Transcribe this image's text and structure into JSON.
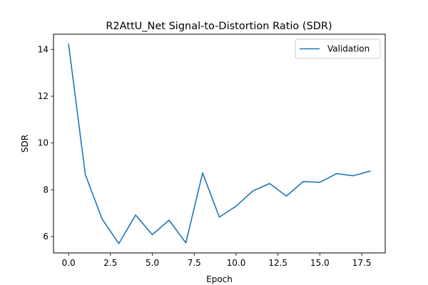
{
  "chart_data": {
    "type": "line",
    "title": "R2AttU_Net Signal-to-Distortion Ratio (SDR)",
    "xlabel": "Epoch",
    "ylabel": "SDR",
    "xlim": [
      -0.9,
      18.9
    ],
    "ylim": [
      5.3,
      14.65
    ],
    "xticks": [
      0.0,
      2.5,
      5.0,
      7.5,
      10.0,
      12.5,
      15.0,
      17.5
    ],
    "xtick_labels": [
      "0.0",
      "2.5",
      "5.0",
      "7.5",
      "10.0",
      "12.5",
      "15.0",
      "17.5"
    ],
    "yticks": [
      6,
      8,
      10,
      12,
      14
    ],
    "ytick_labels": [
      "6",
      "8",
      "10",
      "12",
      "14"
    ],
    "grid": false,
    "legend_position": "top-right",
    "series": [
      {
        "name": "Validation",
        "color": "#1f77b4",
        "x": [
          0,
          1,
          2,
          3,
          4,
          5,
          6,
          7,
          8,
          9,
          10,
          11,
          12,
          13,
          14,
          15,
          16,
          17,
          18
        ],
        "y": [
          14.22,
          8.65,
          6.75,
          5.7,
          6.92,
          6.08,
          6.7,
          5.73,
          8.72,
          6.83,
          7.3,
          7.95,
          8.27,
          7.73,
          8.35,
          8.32,
          8.69,
          8.6,
          8.8
        ]
      }
    ]
  }
}
